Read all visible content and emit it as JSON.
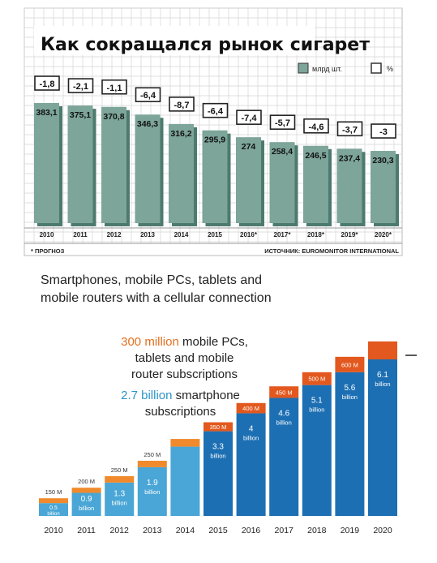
{
  "top": {
    "title": "Как сокращался рынок сигарет",
    "legend": [
      {
        "label": "млрд шт.",
        "color": "#7da59a"
      },
      {
        "label": "%",
        "color": "#7da59a"
      }
    ],
    "footnote": "* ПРОГНОЗ",
    "source": "ИСТОЧНИК: EUROMONITOR INTERNATIONAL"
  },
  "bottom": {
    "title_line1": "Smartphones, mobile PCs, tablets and",
    "title_line2": "mobile routers with a cellular connection",
    "annotation_orange_value": "300 million",
    "annotation_orange_rest_1": "mobile PCs,",
    "annotation_orange_rest_2": "tablets and mobile",
    "annotation_orange_rest_3": "router subscriptions",
    "annotation_blue_value": "2.7 billion",
    "annotation_blue_rest_1": "smartphone",
    "annotation_blue_rest_2": "subscriptions"
  },
  "chart_data": [
    {
      "type": "bar",
      "title": "Как сокращался рынок сигарет",
      "categories": [
        "2010",
        "2011",
        "2012",
        "2013",
        "2014",
        "2015",
        "2016*",
        "2017*",
        "2018*",
        "2019*",
        "2020*"
      ],
      "series": [
        {
          "name": "млрд шт.",
          "values": [
            383.1,
            375.1,
            370.8,
            346.3,
            316.2,
            295.9,
            274,
            258.4,
            246.5,
            237.4,
            230.3
          ],
          "labels": [
            "383,1",
            "375,1",
            "370,8",
            "346,3",
            "316,2",
            "295,9",
            "274",
            "258,4",
            "246,5",
            "237,4",
            "230,3"
          ]
        },
        {
          "name": "%",
          "values": [
            -1.8,
            -2.1,
            -1.1,
            -6.4,
            -8.7,
            -6.4,
            -7.4,
            -5.7,
            -4.6,
            -3.7,
            -3
          ],
          "labels": [
            "-1,8",
            "-2,1",
            "-1,1",
            "-6,4",
            "-8,7",
            "-6,4",
            "-7,4",
            "-5,7",
            "-4,6",
            "-3,7",
            "-3"
          ]
        }
      ],
      "colors": {
        "bar": "#7da59a",
        "bar_dark": "#4d7a6e",
        "grid": "#bbbbbb"
      }
    },
    {
      "type": "bar",
      "title": "Smartphones, mobile PCs, tablets and mobile routers with a cellular connection",
      "categories": [
        "2010",
        "2011",
        "2012",
        "2013",
        "2014",
        "2015",
        "2016",
        "2017",
        "2018",
        "2019",
        "2020"
      ],
      "series": [
        {
          "name": "smartphone subscriptions",
          "values": [
            0.5,
            0.9,
            1.3,
            1.9,
            2.7,
            3.3,
            4,
            4.6,
            5.1,
            5.6,
            6.1
          ],
          "labels": [
            "0.5",
            "0.9",
            "1.3",
            "1.9",
            "",
            "3.3",
            "4",
            "4.6",
            "5.1",
            "5.6",
            "6.1"
          ],
          "unit_label": "billion"
        },
        {
          "name": "mobile PCs, tablets and mobile router subscriptions",
          "values": [
            0.15,
            0.2,
            0.25,
            0.25,
            0.3,
            0.35,
            0.4,
            0.45,
            0.5,
            0.6,
            0.7
          ],
          "labels": [
            "150 M",
            "200 M",
            "250 M",
            "250 M",
            "",
            "350 M",
            "400 M",
            "450 M",
            "500 M",
            "600 M",
            ""
          ]
        }
      ],
      "colors": {
        "light": "#4aa6d6",
        "dark": "#1d6fb3",
        "orange": "#f08a2c",
        "orange_dark": "#e2581e"
      },
      "ylim": [
        0,
        7
      ]
    }
  ]
}
